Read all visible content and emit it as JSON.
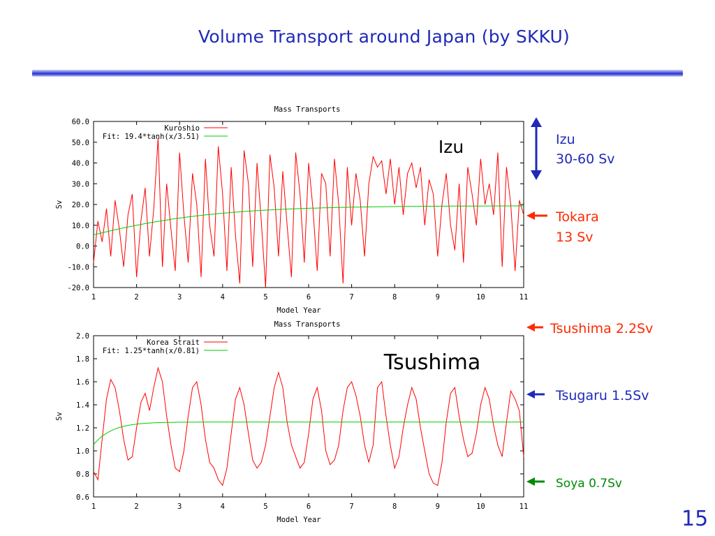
{
  "slide": {
    "title": "Volume Transport around Japan  (by SKKU)",
    "page_number": "15"
  },
  "overlay_labels": {
    "izu": "Izu",
    "tsushima": "Tsushima"
  },
  "annotations": {
    "izu_name": "Izu",
    "izu_value": "30-60 Sv",
    "tokara_name": "Tokara",
    "tokara_value": "13 Sv",
    "tsushima": "Tsushima  2.2Sv",
    "tsugaru": "Tsugaru  1.5Sv",
    "soya": "Soya  0.7Sv",
    "colors": {
      "blue": "#1f2ab8",
      "red": "#ff2a00",
      "green": "#008a00"
    }
  },
  "chart_data": [
    {
      "type": "line",
      "title": "Mass Transports",
      "xlabel": "Model Year",
      "ylabel": "Sv",
      "xlim": [
        1,
        11
      ],
      "ylim": [
        -20,
        60
      ],
      "xticks": [
        "1",
        "2",
        "3",
        "4",
        "5",
        "6",
        "7",
        "8",
        "9",
        "10",
        "11"
      ],
      "yticks": [
        "-20.0",
        "-10.0",
        "0.0",
        "10.0",
        "20.0",
        "30.0",
        "40.0",
        "50.0",
        "60.0"
      ],
      "legend_position": "top-left",
      "series": [
        {
          "name": "Kuroshio",
          "color": "#ff0000",
          "x": [
            1.0,
            1.1,
            1.2,
            1.3,
            1.4,
            1.5,
            1.6,
            1.7,
            1.8,
            1.9,
            2.0,
            2.1,
            2.2,
            2.3,
            2.4,
            2.5,
            2.6,
            2.7,
            2.8,
            2.9,
            3.0,
            3.1,
            3.2,
            3.3,
            3.4,
            3.5,
            3.6,
            3.7,
            3.8,
            3.9,
            4.0,
            4.1,
            4.2,
            4.3,
            4.4,
            4.5,
            4.6,
            4.7,
            4.8,
            4.9,
            5.0,
            5.1,
            5.2,
            5.3,
            5.4,
            5.5,
            5.6,
            5.7,
            5.8,
            5.9,
            6.0,
            6.1,
            6.2,
            6.3,
            6.4,
            6.5,
            6.6,
            6.7,
            6.8,
            6.9,
            7.0,
            7.1,
            7.2,
            7.3,
            7.4,
            7.5,
            7.6,
            7.7,
            7.8,
            7.9,
            8.0,
            8.1,
            8.2,
            8.3,
            8.4,
            8.5,
            8.6,
            8.7,
            8.8,
            8.9,
            9.0,
            9.1,
            9.2,
            9.3,
            9.4,
            9.5,
            9.6,
            9.7,
            9.8,
            9.9,
            10.0,
            10.1,
            10.2,
            10.3,
            10.4,
            10.5,
            10.6,
            10.7,
            10.8,
            10.9,
            11.0
          ],
          "y": [
            -8,
            12,
            2,
            18,
            -5,
            22,
            8,
            -10,
            15,
            25,
            -15,
            12,
            28,
            -5,
            18,
            52,
            -10,
            30,
            8,
            -12,
            45,
            15,
            -8,
            35,
            20,
            -15,
            42,
            10,
            -5,
            48,
            25,
            -12,
            38,
            5,
            -18,
            46,
            30,
            -10,
            40,
            12,
            -20,
            44,
            28,
            -5,
            36,
            10,
            -15,
            45,
            25,
            -8,
            40,
            18,
            -12,
            35,
            30,
            -5,
            42,
            20,
            -18,
            38,
            10,
            35,
            22,
            -5,
            30,
            43,
            38,
            41,
            25,
            42,
            20,
            38,
            15,
            35,
            40,
            28,
            38,
            10,
            32,
            25,
            -5,
            20,
            35,
            10,
            -2,
            30,
            -8,
            38,
            25,
            10,
            42,
            20,
            30,
            15,
            45,
            -10,
            38,
            20,
            -12,
            22,
            15
          ]
        },
        {
          "name": "Fit: 19.4*tanh(x/3.51)",
          "color": "#00cc00",
          "type": "fit"
        }
      ]
    },
    {
      "type": "line",
      "title": "Mass Transports",
      "xlabel": "Model Year",
      "ylabel": "Sv",
      "xlim": [
        1,
        11
      ],
      "ylim": [
        0.6,
        2.0
      ],
      "xticks": [
        "1",
        "2",
        "3",
        "4",
        "5",
        "6",
        "7",
        "8",
        "9",
        "10",
        "11"
      ],
      "yticks": [
        "0.6",
        "0.8",
        "1.0",
        "1.2",
        "1.4",
        "1.6",
        "1.8",
        "2.0"
      ],
      "legend_position": "top-left",
      "series": [
        {
          "name": "Korea Strait",
          "color": "#ff0000",
          "x": [
            1.0,
            1.1,
            1.2,
            1.3,
            1.4,
            1.5,
            1.6,
            1.7,
            1.8,
            1.9,
            2.0,
            2.1,
            2.2,
            2.3,
            2.4,
            2.5,
            2.6,
            2.7,
            2.8,
            2.9,
            3.0,
            3.1,
            3.2,
            3.3,
            3.4,
            3.5,
            3.6,
            3.7,
            3.8,
            3.9,
            4.0,
            4.1,
            4.2,
            4.3,
            4.4,
            4.5,
            4.6,
            4.7,
            4.8,
            4.9,
            5.0,
            5.1,
            5.2,
            5.3,
            5.4,
            5.5,
            5.6,
            5.7,
            5.8,
            5.9,
            6.0,
            6.1,
            6.2,
            6.3,
            6.4,
            6.5,
            6.6,
            6.7,
            6.8,
            6.9,
            7.0,
            7.1,
            7.2,
            7.3,
            7.4,
            7.5,
            7.6,
            7.7,
            7.8,
            7.9,
            8.0,
            8.1,
            8.2,
            8.3,
            8.4,
            8.5,
            8.6,
            8.7,
            8.8,
            8.9,
            9.0,
            9.1,
            9.2,
            9.3,
            9.4,
            9.5,
            9.6,
            9.7,
            9.8,
            9.9,
            10.0,
            10.1,
            10.2,
            10.3,
            10.4,
            10.5,
            10.6,
            10.7,
            10.8,
            10.9,
            11.0
          ],
          "y": [
            0.82,
            0.75,
            1.1,
            1.45,
            1.62,
            1.55,
            1.35,
            1.1,
            0.92,
            0.95,
            1.2,
            1.42,
            1.5,
            1.35,
            1.55,
            1.72,
            1.6,
            1.3,
            1.05,
            0.85,
            0.82,
            1.0,
            1.3,
            1.55,
            1.6,
            1.4,
            1.1,
            0.9,
            0.85,
            0.75,
            0.7,
            0.85,
            1.15,
            1.45,
            1.55,
            1.4,
            1.15,
            0.92,
            0.85,
            0.9,
            1.05,
            1.3,
            1.55,
            1.68,
            1.55,
            1.25,
            1.05,
            0.95,
            0.85,
            0.9,
            1.15,
            1.45,
            1.55,
            1.35,
            1.0,
            0.88,
            0.92,
            1.05,
            1.35,
            1.55,
            1.6,
            1.48,
            1.3,
            1.05,
            0.9,
            1.05,
            1.55,
            1.6,
            1.3,
            1.05,
            0.85,
            0.95,
            1.2,
            1.4,
            1.55,
            1.45,
            1.2,
            1.0,
            0.8,
            0.72,
            0.7,
            0.9,
            1.25,
            1.5,
            1.55,
            1.3,
            1.1,
            0.95,
            0.98,
            1.15,
            1.4,
            1.55,
            1.45,
            1.22,
            1.05,
            0.95,
            1.25,
            1.52,
            1.45,
            1.35,
            0.95
          ]
        },
        {
          "name": "Fit: 1.25*tanh(x/0.81)",
          "color": "#00cc00",
          "type": "fit"
        }
      ]
    }
  ]
}
